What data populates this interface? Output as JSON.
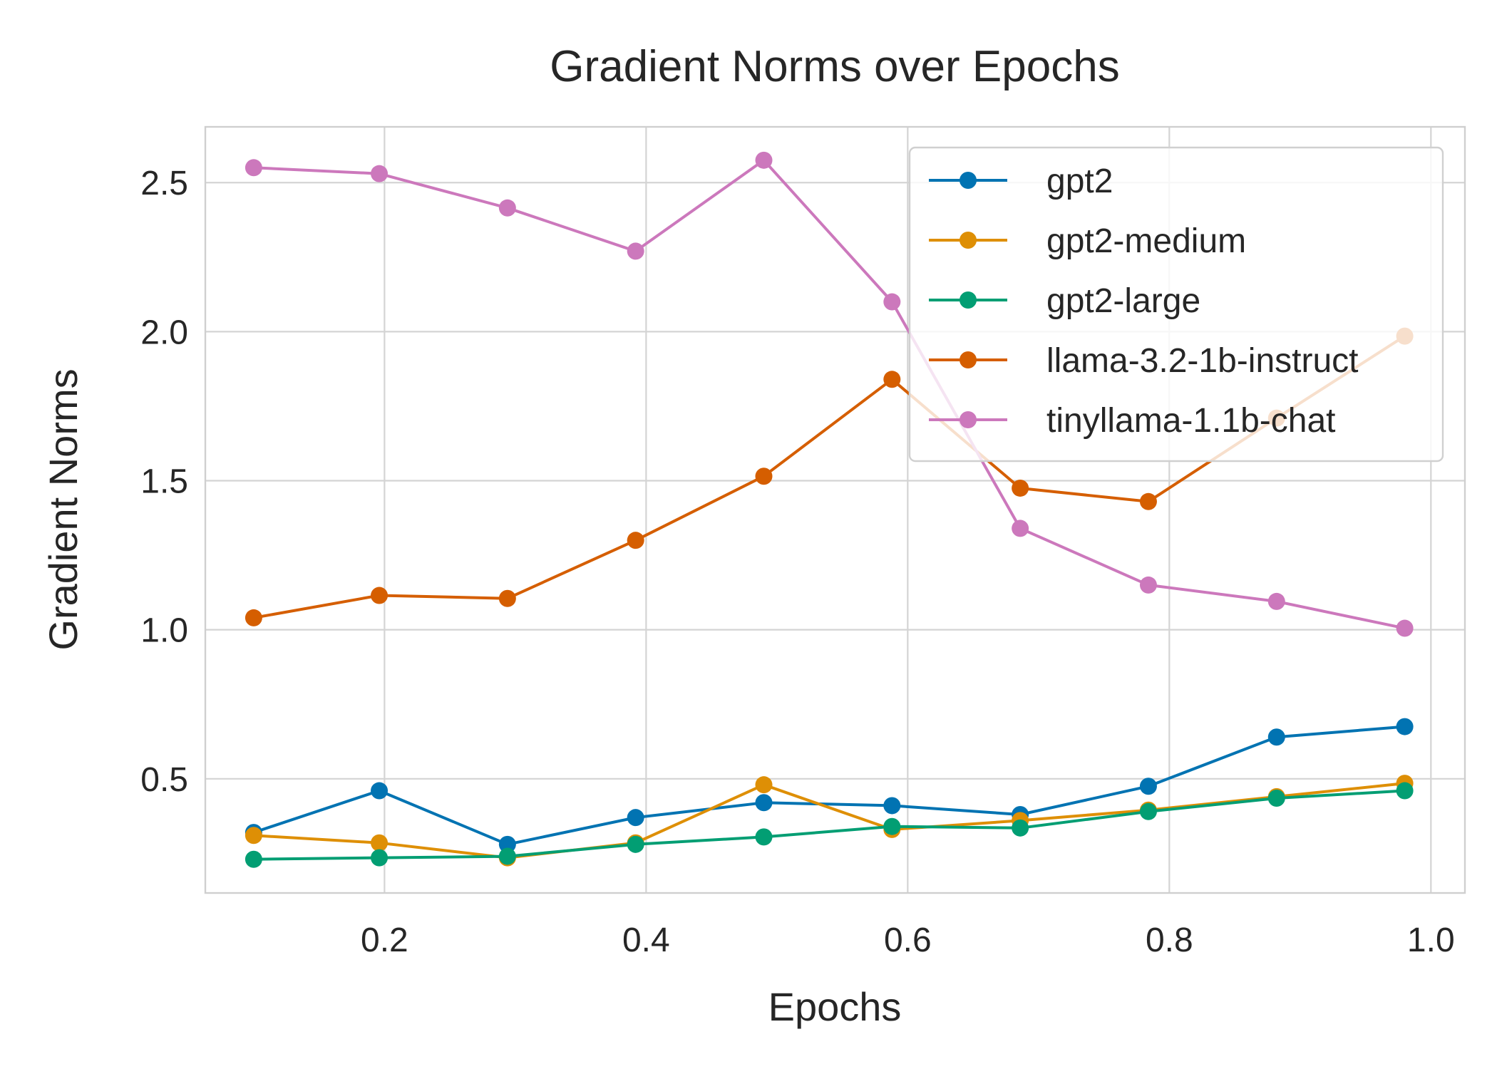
{
  "chart_data": {
    "type": "line",
    "title": "Gradient Norms over Epochs",
    "xlabel": "Epochs",
    "ylabel": "Gradient Norms",
    "xlim": [
      0.063,
      1.026
    ],
    "ylim": [
      0.117,
      2.687
    ],
    "xticks": [
      0.2,
      0.4,
      0.6,
      0.8,
      1.0
    ],
    "xtick_labels": [
      "0.2",
      "0.4",
      "0.6",
      "0.8",
      "1.0"
    ],
    "yticks": [
      0.5,
      1.0,
      1.5,
      2.0,
      2.5
    ],
    "ytick_labels": [
      "0.5",
      "1.0",
      "1.5",
      "2.0",
      "2.5"
    ],
    "grid": true,
    "legend_position": "top-right",
    "x": [
      0.1,
      0.196,
      0.294,
      0.392,
      0.49,
      0.588,
      0.686,
      0.784,
      0.882,
      0.98
    ],
    "series": [
      {
        "name": "gpt2",
        "color": "#0173b2",
        "values": [
          0.32,
          0.46,
          0.28,
          0.37,
          0.42,
          0.41,
          0.38,
          0.475,
          0.64,
          0.675
        ]
      },
      {
        "name": "gpt2-medium",
        "color": "#de8f05",
        "values": [
          0.31,
          0.285,
          0.235,
          0.285,
          0.48,
          0.33,
          0.36,
          0.395,
          0.44,
          0.485
        ]
      },
      {
        "name": "gpt2-large",
        "color": "#029e73",
        "values": [
          0.23,
          0.235,
          0.24,
          0.28,
          0.305,
          0.34,
          0.335,
          0.39,
          0.435,
          0.46
        ]
      },
      {
        "name": "llama-3.2-1b-instruct",
        "color": "#d55e00",
        "values": [
          1.04,
          1.115,
          1.105,
          1.3,
          1.515,
          1.84,
          1.475,
          1.43,
          1.71,
          1.985
        ]
      },
      {
        "name": "tinyllama-1.1b-chat",
        "color": "#cc78bc",
        "values": [
          2.55,
          2.53,
          2.415,
          2.27,
          2.575,
          2.1,
          1.34,
          1.15,
          1.095,
          1.005
        ]
      }
    ]
  }
}
